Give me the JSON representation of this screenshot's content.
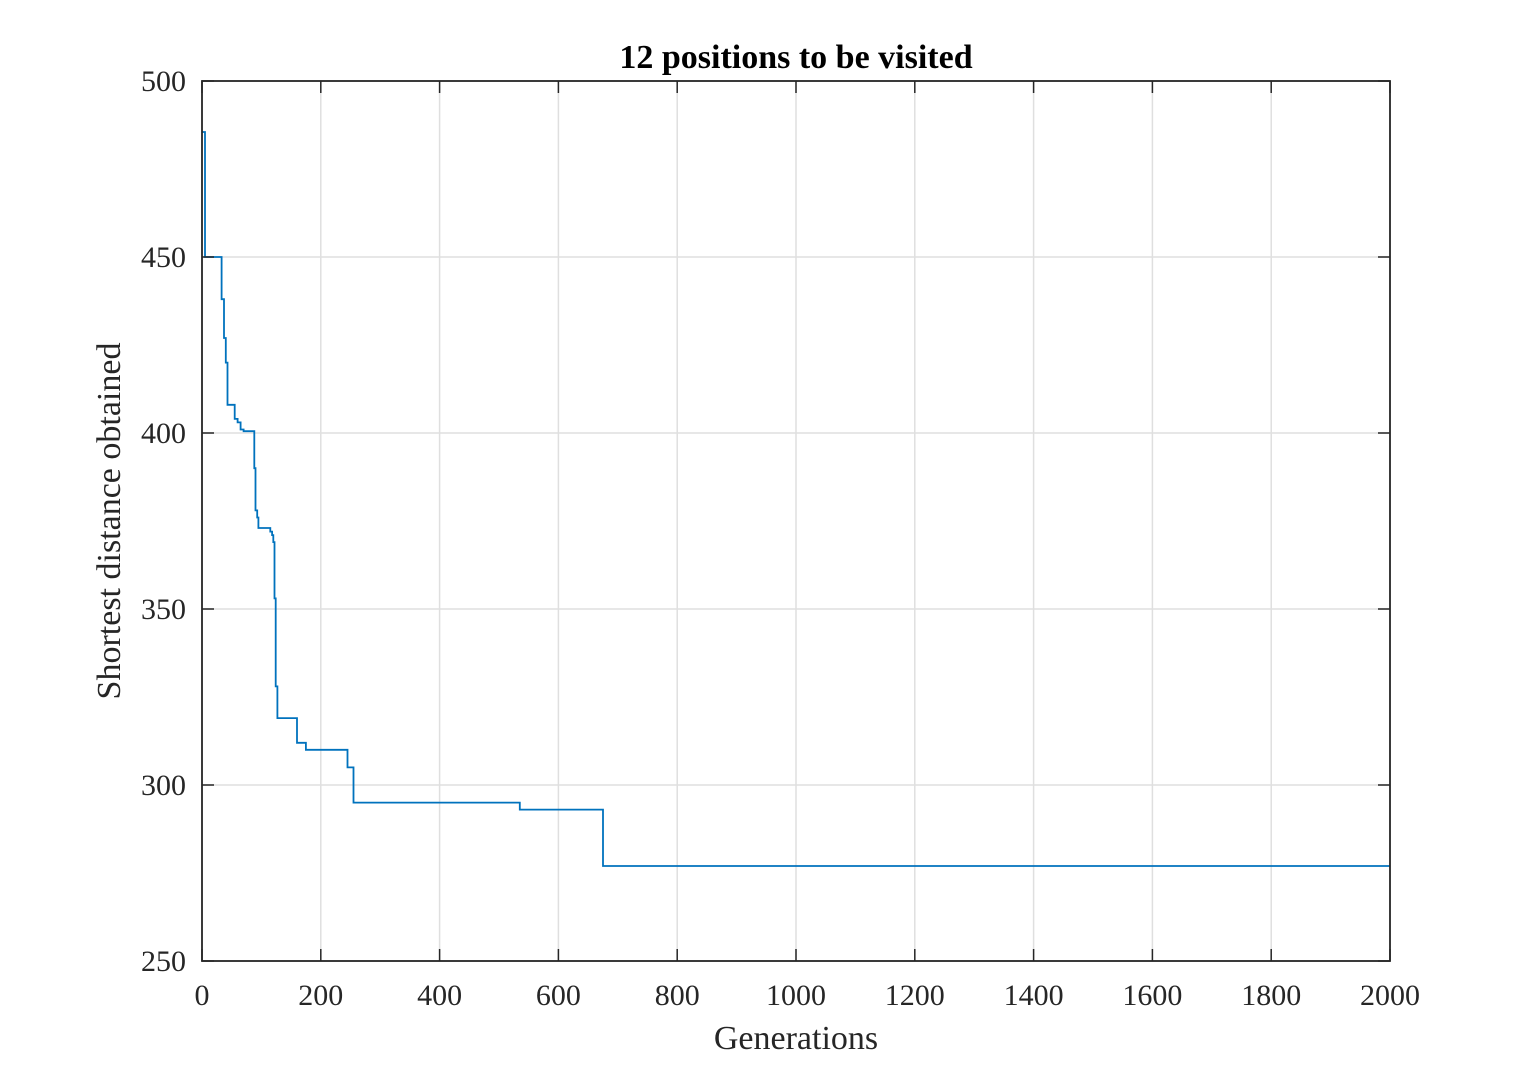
{
  "chart_data": {
    "type": "line",
    "title": "12 positions to be visited",
    "xlabel": "Generations",
    "ylabel": "Shortest distance obtained",
    "xlim": [
      0,
      2000
    ],
    "ylim": [
      250,
      500
    ],
    "xticks": [
      0,
      200,
      400,
      600,
      800,
      1000,
      1200,
      1400,
      1600,
      1800,
      2000
    ],
    "yticks": [
      250,
      300,
      350,
      400,
      450,
      500
    ],
    "grid": true,
    "colors": {
      "series": "#0072bd",
      "axes": "#262626",
      "grid": "#dfdfdf"
    },
    "series": [
      {
        "step": "post",
        "x": [
          0,
          5,
          33,
          37,
          40,
          43,
          45,
          55,
          60,
          65,
          70,
          80,
          88,
          90,
          93,
          95,
          100,
          115,
          118,
          120,
          122,
          124,
          127,
          132,
          160,
          165,
          175,
          245,
          255,
          262,
          535,
          540,
          675,
          2000
        ],
        "y": [
          485.5,
          450,
          438,
          427,
          420,
          408,
          408,
          404,
          403,
          401,
          400.5,
          400.5,
          390,
          378,
          376,
          373,
          373,
          372,
          371,
          369,
          353,
          328,
          319,
          319,
          312,
          312,
          310,
          305,
          295,
          295,
          293,
          293,
          277,
          277
        ]
      }
    ]
  }
}
